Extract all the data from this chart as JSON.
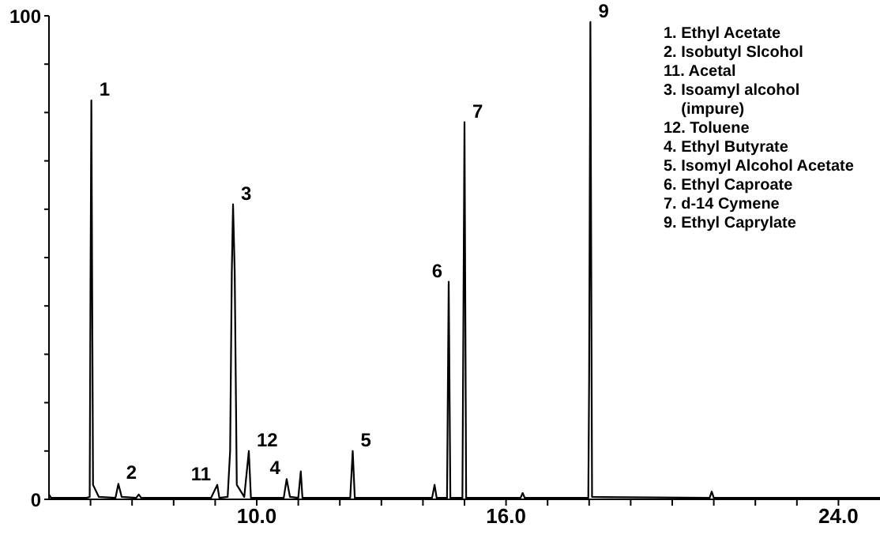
{
  "chart_data": {
    "type": "line",
    "xlim": [
      5,
      25
    ],
    "ylim": [
      0,
      100
    ],
    "xticks": [
      {
        "value": 6,
        "label": null
      },
      {
        "value": 7,
        "label": null
      },
      {
        "value": 8,
        "label": null
      },
      {
        "value": 9,
        "label": null
      },
      {
        "value": 10,
        "label": "10.0"
      },
      {
        "value": 11,
        "label": null
      },
      {
        "value": 12,
        "label": null
      },
      {
        "value": 13,
        "label": null
      },
      {
        "value": 14,
        "label": null
      },
      {
        "value": 15,
        "label": null
      },
      {
        "value": 16,
        "label": "16.0"
      },
      {
        "value": 17,
        "label": null
      },
      {
        "value": 18,
        "label": null
      },
      {
        "value": 19,
        "label": null
      },
      {
        "value": 20,
        "label": null
      },
      {
        "value": 21,
        "label": null
      },
      {
        "value": 22,
        "label": null
      },
      {
        "value": 23,
        "label": null
      },
      {
        "value": 24,
        "label": "24.0"
      }
    ],
    "yticks": [
      0,
      {
        "value": 10,
        "label": null
      },
      {
        "value": 20,
        "label": null
      },
      {
        "value": 30,
        "label": null
      },
      {
        "value": 40,
        "label": null
      },
      {
        "value": 50,
        "label": null
      },
      {
        "value": 60,
        "label": null
      },
      {
        "value": 70,
        "label": null
      },
      {
        "value": 80,
        "label": null
      },
      {
        "value": 90,
        "label": null
      },
      100
    ],
    "grid": false,
    "legend": false,
    "marker": "none",
    "line_style": "solid",
    "series": [
      {
        "color": "#000000",
        "x": [
          5.0,
          5.05,
          5.9,
          5.98,
          6.0,
          6.02,
          6.06,
          6.2,
          6.6,
          6.67,
          6.75,
          7.1,
          7.16,
          7.22,
          8.9,
          9.05,
          9.1,
          9.3,
          9.36,
          9.4,
          9.43,
          9.47,
          9.52,
          9.7,
          9.81,
          9.86,
          10.65,
          10.72,
          10.8,
          11.0,
          11.06,
          11.1,
          12.25,
          12.31,
          12.36,
          14.22,
          14.28,
          14.33,
          14.58,
          14.62,
          14.66,
          14.95,
          15.0,
          15.04,
          16.35,
          16.4,
          16.45,
          17.98,
          18.0,
          18.03,
          18.07,
          20.9,
          20.95,
          21.0,
          25.0
        ],
        "values": [
          1,
          0.3,
          0.3,
          0.5,
          45,
          82.5,
          3,
          0.5,
          0.3,
          3.2,
          0.5,
          0.3,
          1,
          0.3,
          0.3,
          3,
          0.3,
          0.5,
          10,
          47,
          61,
          47,
          3,
          0.5,
          10,
          0.3,
          0.3,
          4.2,
          0.5,
          0.3,
          5.8,
          0.3,
          0.3,
          10,
          0.3,
          0.3,
          3,
          0.3,
          0.3,
          45,
          0.3,
          0.3,
          78,
          0.3,
          0.3,
          1.3,
          0.3,
          0.3,
          25,
          98.7,
          0.5,
          0.3,
          1.6,
          0.3,
          0.3
        ]
      }
    ],
    "annotations": [
      {
        "text": "1",
        "x": 6.02,
        "y": 82.5
      },
      {
        "text": "2",
        "x": 6.67,
        "y": 3.2
      },
      {
        "text": "11",
        "x": 9.05,
        "y": 3
      },
      {
        "text": "3",
        "x": 9.43,
        "y": 61
      },
      {
        "text": "12",
        "x": 9.81,
        "y": 10
      },
      {
        "text": "4",
        "x": 10.72,
        "y": 4.2
      },
      {
        "text": "5",
        "x": 12.31,
        "y": 10
      },
      {
        "text": "6",
        "x": 14.62,
        "y": 45
      },
      {
        "text": "7",
        "x": 15.0,
        "y": 78
      },
      {
        "text": "9",
        "x": 18.03,
        "y": 98.7
      },
      "1. Ethyl Acetate",
      "2. Isobutyl Slcohol",
      "11. Acetal",
      "3. Isoamyl alcohol\n(impure)",
      "12. Toluene",
      "4. Ethyl Butyrate",
      "5. Isomyl Alcohol Acetate",
      "6. Ethyl Caproate",
      "7. d-14 Cymene",
      "9. Ethyl Caprylate"
    ]
  }
}
